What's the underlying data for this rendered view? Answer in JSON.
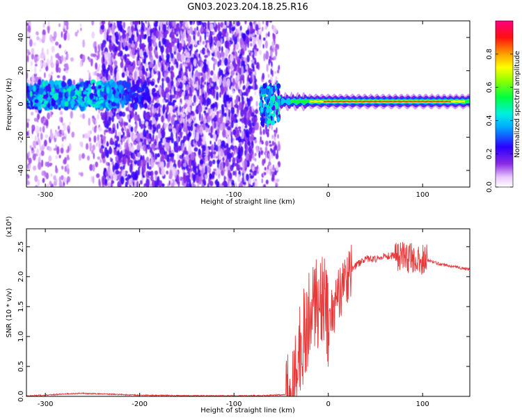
{
  "title": "GN03.2023.204.18.25.R16",
  "colors": {
    "snr_line": "#e8393a",
    "axes": "#000000"
  },
  "chart_data": [
    {
      "type": "heatmap",
      "name": "spectrogram",
      "xlabel": "Height of straight line (km)",
      "ylabel": "Frequency (Hz)",
      "xlim": [
        -320,
        150
      ],
      "ylim": [
        -50,
        50
      ],
      "xticks": [
        -300,
        -200,
        -100,
        0,
        100
      ],
      "yticks": [
        -40,
        -20,
        0,
        20,
        40
      ],
      "colorbar": {
        "label": "Normalized spectral amplitude",
        "range": [
          0,
          1
        ],
        "ticks": [
          "0.0",
          "0.2",
          "0.4",
          "0.6",
          "0.8"
        ],
        "colormap": "gist_rainbow_like"
      },
      "features": [
        {
          "x_range": [
            -320,
            -240
          ],
          "freq_center": 5,
          "freq_halfwidth": 10,
          "amplitude": 0.4,
          "note": "strong band with broadband noise above and below"
        },
        {
          "x_range": [
            -240,
            -75
          ],
          "freq_center": 0,
          "freq_halfwidth": 50,
          "amplitude": 0.15,
          "note": "broadband noise"
        },
        {
          "x_range": [
            -75,
            -55
          ],
          "freq_center": 0,
          "freq_halfwidth": 20,
          "amplitude": 0.3,
          "note": "transition"
        },
        {
          "x_range": [
            -55,
            150
          ],
          "freq_center": 1.5,
          "freq_halfwidth": 3,
          "amplitude": 0.9,
          "note": "narrow carrier line"
        }
      ]
    },
    {
      "type": "line",
      "name": "snr",
      "xlabel": "Height of straight line (km)",
      "ylabel": "SNR (10 * v/v)",
      "yscale_label": "(x10⁴)",
      "xlim": [
        -320,
        150
      ],
      "ylim": [
        0,
        2.8
      ],
      "xticks": [
        -300,
        -200,
        -100,
        0,
        100
      ],
      "yticks": [
        "0.0",
        "0.5",
        "1.0",
        "1.5",
        "2.0",
        "2.5"
      ],
      "series": [
        {
          "x": [
            -320,
            -300,
            -280,
            -260,
            -240,
            -220,
            -200,
            -150,
            -100,
            -80,
            -60,
            -45,
            -40,
            -35,
            -30,
            -25,
            -20,
            -15,
            -10,
            -5,
            0,
            5,
            10,
            15,
            20,
            30,
            40,
            50,
            60,
            70,
            80,
            90,
            100,
            110,
            120,
            130,
            140,
            150
          ],
          "y": [
            0.01,
            0.02,
            0.04,
            0.05,
            0.04,
            0.03,
            0.02,
            0.01,
            0.01,
            0.01,
            0.02,
            0.03,
            0.1,
            0.3,
            0.8,
            1.1,
            1.3,
            1.5,
            1.6,
            1.7,
            1.2,
            1.4,
            1.7,
            1.8,
            2.0,
            2.2,
            2.3,
            2.3,
            2.35,
            2.35,
            2.35,
            2.3,
            2.3,
            2.25,
            2.2,
            2.18,
            2.15,
            2.12
          ]
        }
      ]
    }
  ]
}
